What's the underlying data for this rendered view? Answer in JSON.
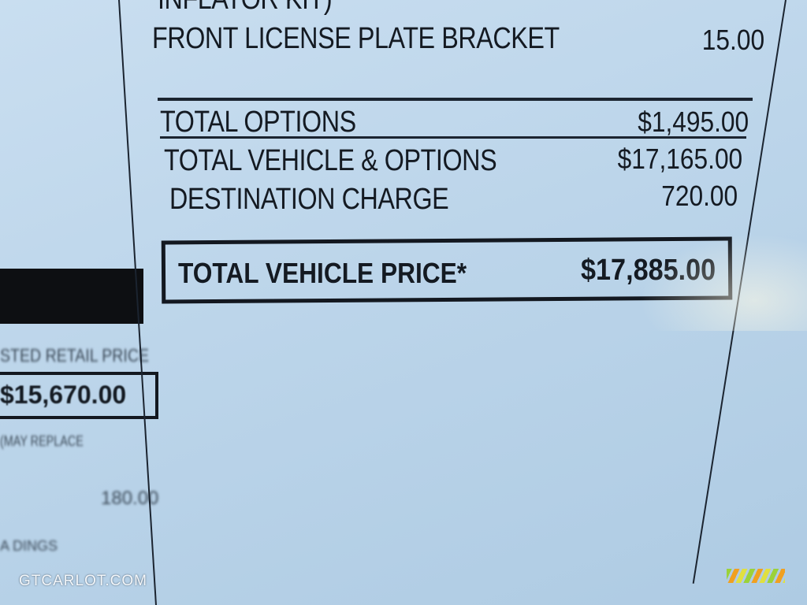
{
  "sticker": {
    "partial_top_item": "INFLATOR KIT)",
    "items": [
      {
        "label": "FRONT LICENSE PLATE BRACKET",
        "value": "15.00"
      }
    ],
    "total_options": {
      "label": "TOTAL OPTIONS",
      "value": "$1,495.00"
    },
    "total_vehicle_options": {
      "label": "TOTAL VEHICLE & OPTIONS",
      "value": "$17,165.00"
    },
    "destination_charge": {
      "label": "DESTINATION CHARGE",
      "value": "720.00"
    },
    "total_vehicle_price": {
      "label": "TOTAL VEHICLE PRICE*",
      "value": "$17,885.00"
    }
  },
  "left_panel": {
    "msrp_label": "STED RETAIL PRICE",
    "msrp_value": "$15,670.00",
    "note": "(MAY REPLACE",
    "amount": "180.00",
    "partial_text": "A DINGS"
  },
  "watermark": {
    "text": "GTCARLOT.COM"
  }
}
